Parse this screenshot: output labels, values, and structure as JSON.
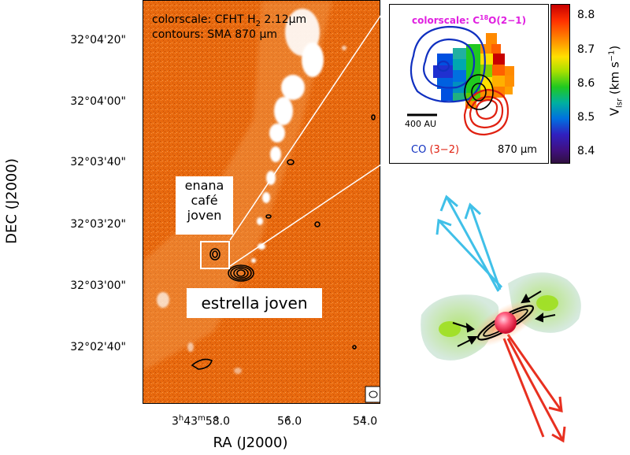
{
  "main_map": {
    "colorscale_label": "colorscale: CFHT H",
    "colorscale_sub": "2",
    "colorscale_wave": " 2.12μm",
    "contours_label": "contours: SMA 870 μm",
    "y_axis_label": "DEC (J2000)",
    "x_axis_label": "RA (J2000)",
    "y_ticks": [
      "32°04'20\"",
      "32°04'00\"",
      "32°03'40\"",
      "32°03'20\"",
      "32°03'00\"",
      "32°02'40\""
    ],
    "x_ticks": [
      {
        "h": "3",
        "hu": "h",
        "m": "43",
        "mu": "m",
        "s": "58.0",
        "su": "s"
      },
      {
        "s": "56.0",
        "su": "s"
      },
      {
        "s": "54.0",
        "su": "s"
      }
    ],
    "brown_dwarf_label": [
      "enana",
      "café",
      "joven"
    ],
    "young_star_label": "estrella joven"
  },
  "inset": {
    "colorscale_prefix": "colorscale: C",
    "colorscale_sup": "18",
    "colorscale_suffix": "O(2−1)",
    "scalebar_label": "400 AU",
    "co_label": "CO",
    "co_transition": "(3−2)",
    "wave_label": "870 μm",
    "colorbar_ticks": [
      "8.8",
      "8.7",
      "8.6",
      "8.5",
      "8.4"
    ],
    "colorbar_label_main": "V",
    "colorbar_label_sub": "lsr",
    "colorbar_label_units": "(km s",
    "colorbar_label_exp": "−1",
    "colorbar_label_close": ")"
  },
  "colors": {
    "map_background": "#e8690e",
    "emission": "#ffffff",
    "blue_lobe": "#1030c0",
    "red_lobe": "#e02010",
    "cyan_arrows": "#40c0e8",
    "red_arrows": "#e83020",
    "inset_title": "#e020e0"
  }
}
